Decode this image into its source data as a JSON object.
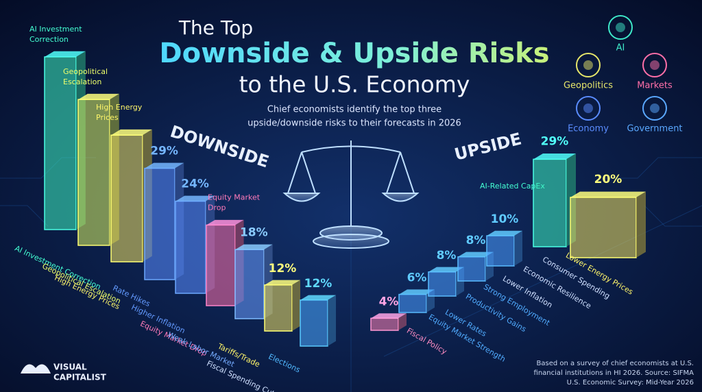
{
  "chart_data": [
    {
      "type": "bar",
      "title": "DOWNSIDE",
      "categories": [
        "AI Investment Correction",
        "Geopolitical Escalation",
        "High Energy Prices",
        "Rate Hikes",
        "Higher Inflation",
        "Equity Market Drop",
        "Weak Labor Market",
        "Tariffs/Trade",
        "Fiscal Spending Cuts",
        "Elections"
      ],
      "values": [
        45,
        38,
        33,
        29,
        24,
        21,
        18,
        12,
        null,
        12
      ],
      "value_labels": [
        null,
        null,
        null,
        "29%",
        "24%",
        null,
        "18%",
        "12%",
        null,
        "12%"
      ],
      "colors": [
        "#3ef0c0",
        "#d8f060",
        "#f0e060",
        "#5a8cff",
        "#5a8cff",
        "#ff6fa8",
        "#6a9cff",
        "#f0e060",
        null,
        "#4aa8ff"
      ],
      "annotations": [
        "AI Investment Correction",
        "Geopolitical Escalation",
        "High Energy Prices",
        "Equity Market Drop"
      ]
    },
    {
      "type": "bar",
      "title": "UPSIDE",
      "categories": [
        "Fiscal Policy",
        "Equity Market Strength",
        "Lower Rates",
        "Productivity Gains",
        "Strong Employment",
        "Lower Inflation",
        "Economic Resilience",
        "AI-Related CapEx",
        "Consumer Spending",
        "Lower Energy Prices"
      ],
      "values": [
        4,
        6,
        8,
        8,
        10,
        null,
        null,
        29,
        null,
        20
      ],
      "value_labels": [
        "4%",
        "6%",
        "8%",
        "8%",
        "10%",
        null,
        null,
        "29%",
        null,
        "20%"
      ],
      "colors": [
        "#ff7fb0",
        "#4a9cff",
        "#4a9cff",
        "#4a9cff",
        "#4a9cff",
        null,
        null,
        "#3ef0c0",
        null,
        "#f0e060"
      ]
    }
  ],
  "title_lines": [
    "The Top",
    "Downside & Upside Risks",
    "to the U.S. Economy"
  ],
  "subtitle_lines": [
    "Chief economists identify the top three",
    "upside/downside risks to their forecasts in 2026"
  ],
  "icon_legend": [
    {
      "name": "AI",
      "color": "#3ee8c8"
    },
    {
      "name": "Geopolitics",
      "color": "#e6e66a"
    },
    {
      "name": "Markets",
      "color": "#ff6fa8"
    },
    {
      "name": "Economy",
      "color": "#5a8cff"
    },
    {
      "name": "Government",
      "color": "#5aa8ff"
    }
  ],
  "source_lines": [
    "Based on a survey of chief economists at U.S.",
    "financial institutions in HI 2026. Source: SIFMA",
    "U.S. Economic Survey: Mid-Year 2026"
  ],
  "logo_lines": [
    "VISUAL",
    "CAPITALIST"
  ]
}
